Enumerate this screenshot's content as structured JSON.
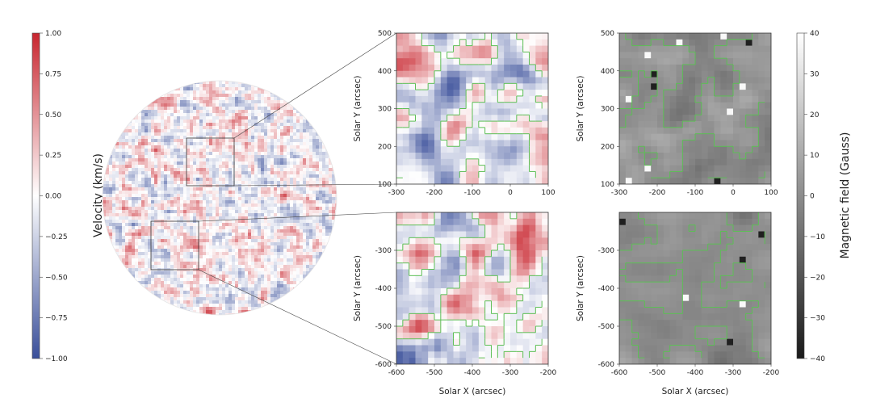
{
  "chart_data": [
    {
      "type": "heatmap",
      "panel": "full-disk velocity map",
      "colorbar": {
        "label": "Velocity (km/s)",
        "ticks": [
          "1.00",
          "0.75",
          "0.50",
          "0.25",
          "0.00",
          "−0.25",
          "−0.50",
          "−0.75",
          "−1.00"
        ],
        "range": [
          -1.0,
          1.0
        ],
        "colormap": [
          "#3a4f9a",
          "#ffffff",
          "#c8262f"
        ]
      },
      "zoom_boxes": [
        {
          "x": [
            -300,
            100
          ],
          "y": [
            100,
            500
          ]
        },
        {
          "x": [
            -600,
            -200
          ],
          "y": [
            -600,
            -200
          ]
        }
      ]
    },
    {
      "type": "heatmap",
      "panel": "velocity zoom upper",
      "xlim": [
        -300,
        100
      ],
      "ylim": [
        100,
        500
      ],
      "xticks": [
        "-300",
        "-200",
        "-100",
        "0",
        "100"
      ],
      "yticks": [
        "500",
        "400",
        "300",
        "200",
        "100"
      ],
      "ylabel": "Solar Y (arcsec)",
      "contour_color": "#5cbf55"
    },
    {
      "type": "heatmap",
      "panel": "velocity zoom lower",
      "xlim": [
        -600,
        -200
      ],
      "ylim": [
        -600,
        -200
      ],
      "xticks": [
        "-600",
        "-500",
        "-400",
        "-300",
        "-200"
      ],
      "yticks": [
        "-300",
        "-400",
        "-500",
        "-600"
      ],
      "xlabel": "Solar X (arcsec)",
      "ylabel": "Solar Y (arcsec)",
      "contour_color": "#5cbf55"
    },
    {
      "type": "heatmap",
      "panel": "magnetic zoom upper",
      "xlim": [
        -300,
        100
      ],
      "ylim": [
        100,
        500
      ],
      "xticks": [
        "-300",
        "-200",
        "-100",
        "0",
        "100"
      ],
      "yticks": [
        "500",
        "400",
        "300",
        "200",
        "100"
      ],
      "ylabel": "Solar Y (arcsec)",
      "contour_color": "#5cbf55"
    },
    {
      "type": "heatmap",
      "panel": "magnetic zoom lower",
      "xlim": [
        -600,
        -200
      ],
      "ylim": [
        -600,
        -200
      ],
      "xticks": [
        "-600",
        "-500",
        "-400",
        "-300",
        "-200"
      ],
      "yticks": [
        "-300",
        "-400",
        "-500",
        "-600"
      ],
      "xlabel": "Solar X (arcsec)",
      "ylabel": "Solar Y (arcsec)",
      "contour_color": "#5cbf55"
    },
    {
      "type": "heatmap",
      "panel": "magnetic colorbar",
      "colorbar": {
        "label": "Magnetic field (Gauss)",
        "ticks": [
          "40",
          "30",
          "20",
          "10",
          "0",
          "−10",
          "−20",
          "−30",
          "−40"
        ],
        "range": [
          -40,
          40
        ],
        "colormap": [
          "#1a1a1a",
          "#ffffff"
        ]
      }
    }
  ]
}
